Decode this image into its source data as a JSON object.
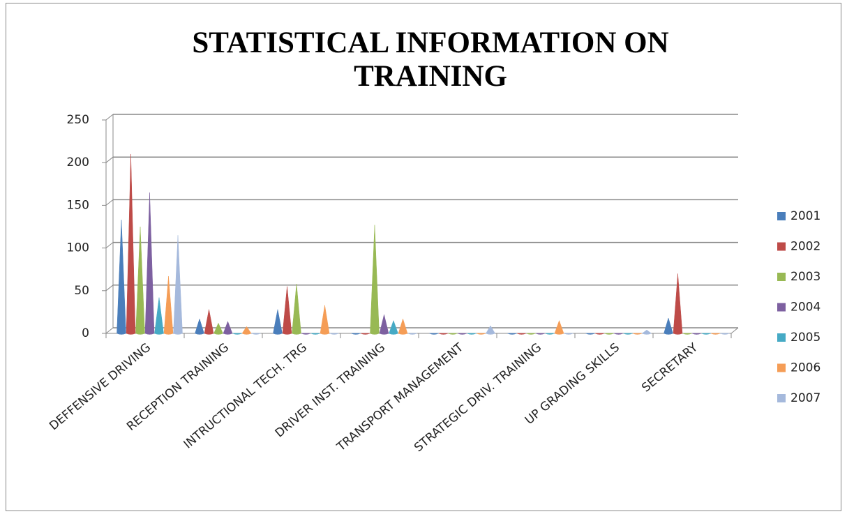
{
  "chart_data": {
    "type": "bar",
    "title": "STATISTICAL INFORMATION ON TRAINING",
    "categories": [
      "DEFFENSIVE DRIVING",
      "RECEPTION TRAINING",
      "INTRUCTIONAL TECH. TRG",
      "DRIVER INST. TRAINING",
      "TRANSPORT MANAGEMENT",
      "STRATEGIC DRIV. TRAINING",
      "UP GRADING SKILLS",
      "SECRETARY"
    ],
    "series": [
      {
        "name": "2001",
        "color": "#4a7ebb",
        "values": [
          133,
          17,
          28,
          0,
          0,
          0,
          0,
          18
        ]
      },
      {
        "name": "2002",
        "color": "#be4b48",
        "values": [
          210,
          28,
          55,
          0,
          0,
          0,
          0,
          70
        ]
      },
      {
        "name": "2003",
        "color": "#98b954",
        "values": [
          125,
          12,
          58,
          127,
          0,
          0,
          0,
          0
        ]
      },
      {
        "name": "2004",
        "color": "#7d60a0",
        "values": [
          165,
          14,
          0,
          22,
          0,
          0,
          0,
          0
        ]
      },
      {
        "name": "2005",
        "color": "#46aac5",
        "values": [
          42,
          0,
          0,
          15,
          0,
          0,
          0,
          0
        ]
      },
      {
        "name": "2006",
        "color": "#f59d56",
        "values": [
          67,
          8,
          33,
          17,
          0,
          15,
          0,
          0
        ]
      },
      {
        "name": "2007",
        "color": "#a5b9dc",
        "values": [
          115,
          0,
          0,
          0,
          9,
          0,
          4,
          0
        ]
      }
    ],
    "ylim": [
      0,
      250
    ],
    "yticks": [
      0,
      50,
      100,
      150,
      200,
      250
    ],
    "grid": true,
    "legend": "right"
  }
}
